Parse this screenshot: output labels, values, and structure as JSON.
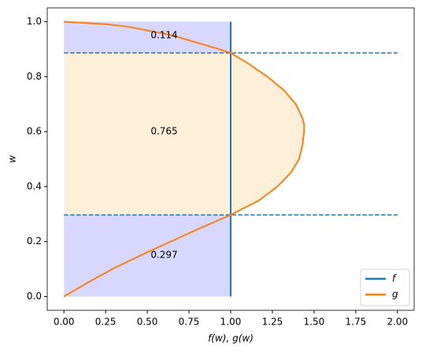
{
  "chart_data": {
    "type": "line",
    "xlabel": "f(w), g(w)",
    "ylabel": "w",
    "xlim": [
      -0.1,
      2.1
    ],
    "ylim": [
      -0.05,
      1.05
    ],
    "xticks": [
      {
        "value": 0,
        "label": "0.00"
      },
      {
        "value": 0.25,
        "label": "0.25"
      },
      {
        "value": 0.5,
        "label": "0.50"
      },
      {
        "value": 0.75,
        "label": "0.75"
      },
      {
        "value": 1,
        "label": "1.00"
      },
      {
        "value": 1.25,
        "label": "1.25"
      },
      {
        "value": 1.5,
        "label": "1.50"
      },
      {
        "value": 1.75,
        "label": "1.75"
      },
      {
        "value": 2,
        "label": "2.00"
      }
    ],
    "yticks": [
      {
        "value": 0,
        "label": "0.0"
      },
      {
        "value": 0.2,
        "label": "0.2"
      },
      {
        "value": 0.4,
        "label": "0.4"
      },
      {
        "value": 0.6,
        "label": "0.6"
      },
      {
        "value": 0.8,
        "label": "0.8"
      },
      {
        "value": 1,
        "label": "1.0"
      }
    ],
    "series": [
      {
        "name": "f",
        "color": "#1f77b4",
        "x": [
          1,
          1
        ],
        "values": [
          0,
          1
        ]
      },
      {
        "name": "g",
        "color": "#ff7f0e",
        "x": [
          0,
          0.14,
          0.29,
          0.46,
          0.64,
          0.82,
          1.0,
          1.17,
          1.28,
          1.36,
          1.41,
          1.43,
          1.44,
          1.44,
          1.43,
          1.39,
          1.32,
          1.22,
          1.1,
          1.0,
          0.93,
          0.65,
          0.4,
          0.27,
          0
        ],
        "values": [
          0,
          0.05,
          0.1,
          0.15,
          0.2,
          0.25,
          0.297,
          0.35,
          0.4,
          0.45,
          0.5,
          0.55,
          0.6,
          0.625,
          0.65,
          0.7,
          0.75,
          0.8,
          0.85,
          0.886,
          0.9,
          0.95,
          0.98,
          0.99,
          1.0
        ]
      }
    ],
    "hlines": [
      0.297,
      0.886
    ],
    "hline_span": [
      0,
      2
    ],
    "fill_colors": [
      "#d8d8ff",
      "#feefd9"
    ],
    "annotations": [
      "0.114",
      "0.765",
      "0.297"
    ],
    "legend": "lower right"
  }
}
